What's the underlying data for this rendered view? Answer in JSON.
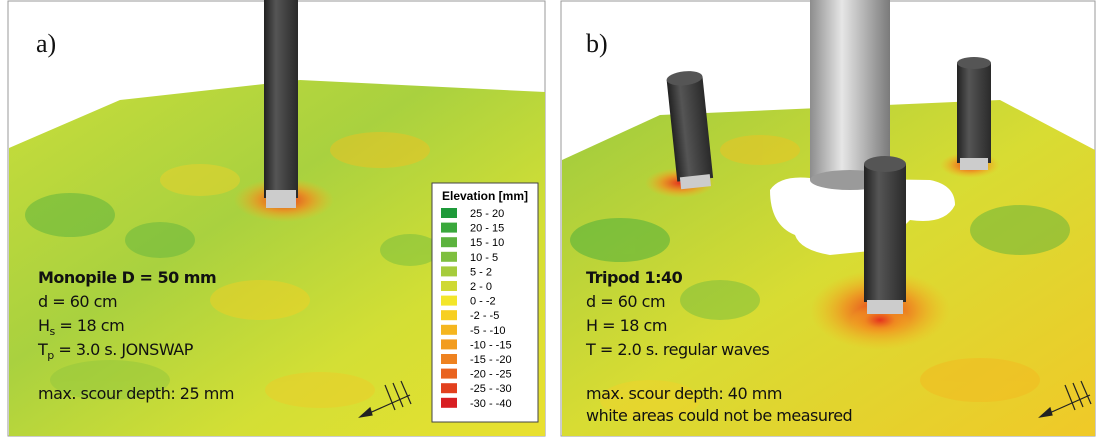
{
  "panels": [
    {
      "label": "a)",
      "lines": [
        {
          "text": "Monopile D = 50 mm",
          "bold": true
        },
        {
          "text": "d = 60 cm"
        },
        {
          "main": "H",
          "sub": "s",
          "rest": " = 18 cm"
        },
        {
          "main": "T",
          "sub": "p",
          "rest": " = 3.0 s. JONSWAP"
        },
        {
          "text": "max. scour depth: 25 mm"
        }
      ]
    },
    {
      "label": "b)",
      "lines": [
        {
          "text": "Tripod 1:40",
          "bold": true
        },
        {
          "text": "d = 60 cm"
        },
        {
          "text": "H = 18 cm"
        },
        {
          "text": "T = 2.0 s. regular waves"
        },
        {
          "text": "max. scour depth: 40 mm"
        },
        {
          "text": "white areas could not be measured"
        }
      ]
    }
  ],
  "legend": {
    "title": "Elevation [mm]",
    "items": [
      {
        "label": "25 - 20",
        "color": "#1e9a3a"
      },
      {
        "label": "20 - 15",
        "color": "#3aa83c"
      },
      {
        "label": "15 - 10",
        "color": "#5cb33e"
      },
      {
        "label": "10 - 5",
        "color": "#7fbf3f"
      },
      {
        "label": "5 - 2",
        "color": "#a6cc3c"
      },
      {
        "label": "2 - 0",
        "color": "#cfd934"
      },
      {
        "label": "0 - -2",
        "color": "#f3e62a"
      },
      {
        "label": "-2 - -5",
        "color": "#f7cf22"
      },
      {
        "label": "-5 - -10",
        "color": "#f5b61f"
      },
      {
        "label": "-10 - -15",
        "color": "#f29c1f"
      },
      {
        "label": "-15 - -20",
        "color": "#ee8220"
      },
      {
        "label": "-20 - -25",
        "color": "#e9631f"
      },
      {
        "label": "-25 - -30",
        "color": "#e2401e"
      },
      {
        "label": "-30 - -40",
        "color": "#d81e22"
      }
    ]
  }
}
